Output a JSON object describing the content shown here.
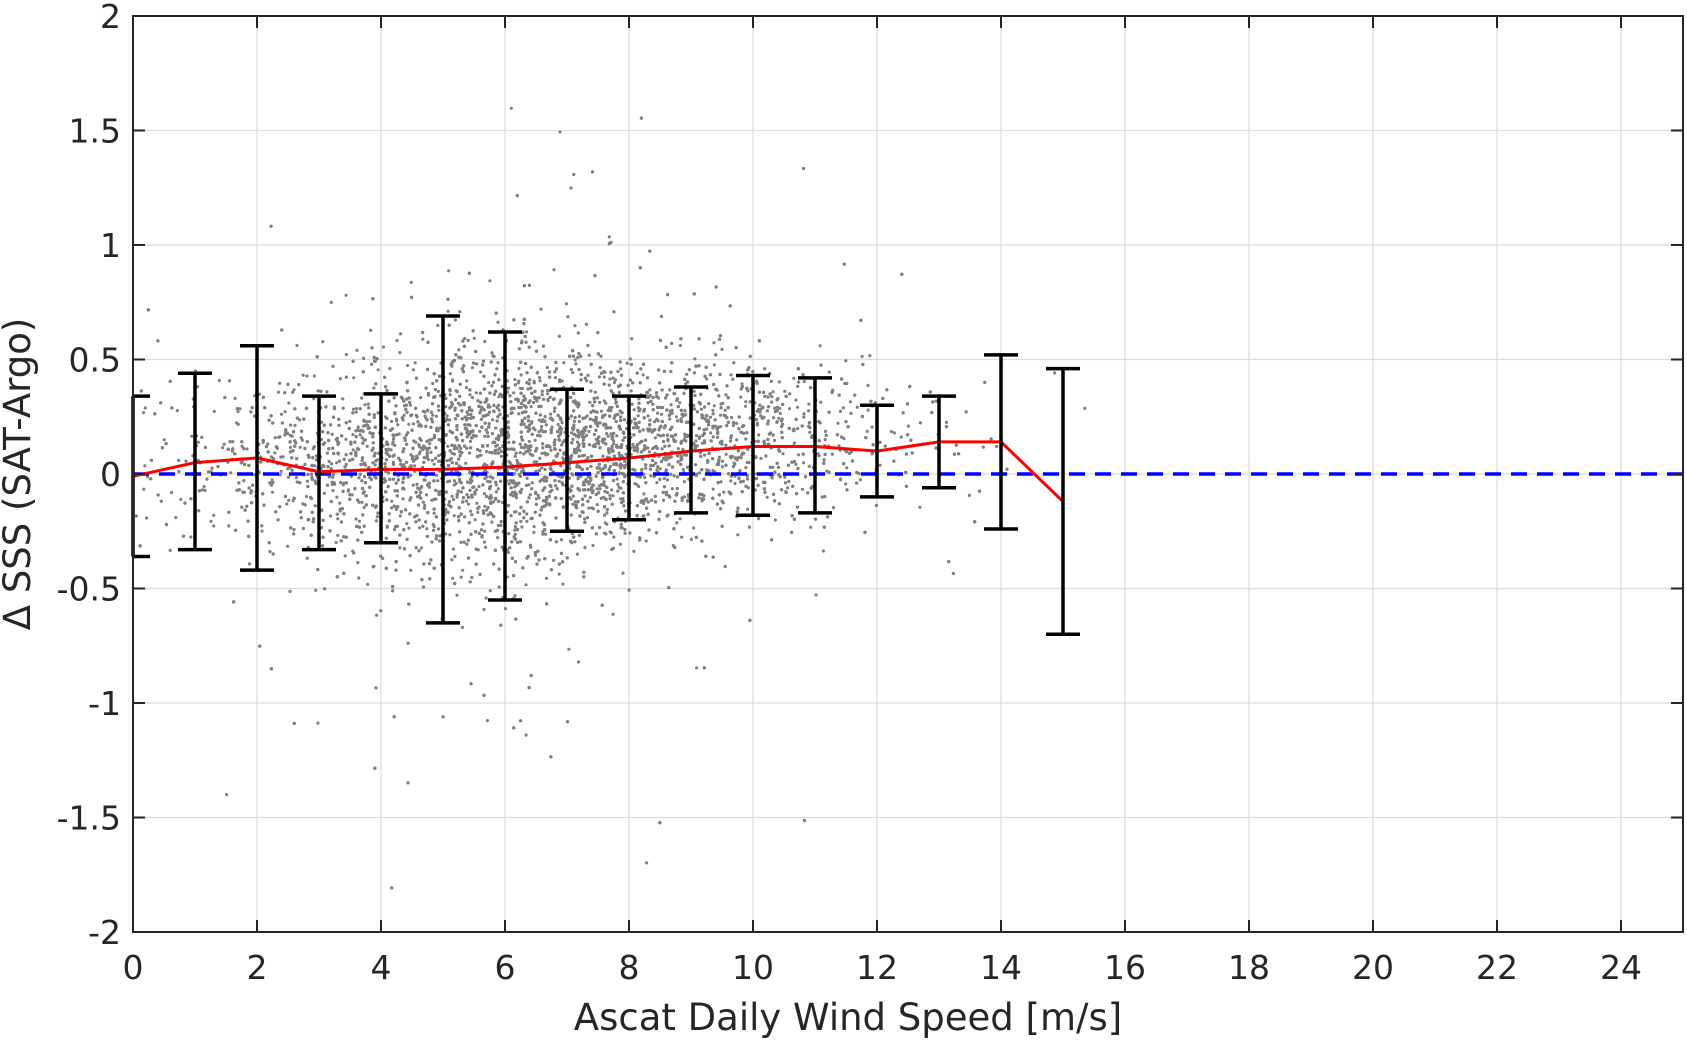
{
  "chart_data": {
    "type": "scatter",
    "xlabel": "Ascat Daily Wind Speed [m/s]",
    "ylabel": "Δ SSS (SAT-Argo)",
    "xlim": [
      0,
      25
    ],
    "ylim": [
      -2,
      2
    ],
    "grid": true,
    "x_ticks": [
      0,
      2,
      4,
      6,
      8,
      10,
      12,
      14,
      16,
      18,
      20,
      22,
      24
    ],
    "x_tick_labels": [
      "0",
      "2",
      "4",
      "6",
      "8",
      "10",
      "12",
      "14",
      "16",
      "18",
      "20",
      "22",
      "24"
    ],
    "y_ticks": [
      -2,
      -1.5,
      -1,
      -0.5,
      0,
      0.5,
      1,
      1.5,
      2
    ],
    "y_tick_labels": [
      "-2",
      "-1.5",
      "-1",
      "-0.5",
      "0",
      "0.5",
      "1",
      "1.5",
      "2"
    ],
    "colors": {
      "scatter": "#808080",
      "mean_line": "#ff0000",
      "zero_line": "#0000ff",
      "error_bars": "#000000",
      "grid": "#dcdcdc",
      "axes": "#262626"
    },
    "scatter_distribution": {
      "description_x_range": [
        0,
        15.5
      ],
      "cluster_center_x": 6.5,
      "cluster_center_y": 0.05
    },
    "mean_line": {
      "x": [
        0,
        1,
        2,
        3,
        4,
        5,
        6,
        7,
        8,
        9,
        10,
        11,
        12,
        13,
        14,
        15
      ],
      "y": [
        -0.01,
        0.05,
        0.07,
        0.01,
        0.02,
        0.02,
        0.03,
        0.05,
        0.07,
        0.1,
        0.12,
        0.12,
        0.1,
        0.14,
        0.14,
        -0.12
      ]
    },
    "error_bars": [
      {
        "x": 0,
        "upper": 0.34,
        "lower": -0.36
      },
      {
        "x": 1,
        "upper": 0.44,
        "lower": -0.33
      },
      {
        "x": 2,
        "upper": 0.56,
        "lower": -0.42
      },
      {
        "x": 3,
        "upper": 0.34,
        "lower": -0.33
      },
      {
        "x": 4,
        "upper": 0.35,
        "lower": -0.3
      },
      {
        "x": 5,
        "upper": 0.69,
        "lower": -0.65
      },
      {
        "x": 6,
        "upper": 0.62,
        "lower": -0.55
      },
      {
        "x": 7,
        "upper": 0.37,
        "lower": -0.25
      },
      {
        "x": 8,
        "upper": 0.34,
        "lower": -0.2
      },
      {
        "x": 9,
        "upper": 0.38,
        "lower": -0.17
      },
      {
        "x": 10,
        "upper": 0.43,
        "lower": -0.18
      },
      {
        "x": 11,
        "upper": 0.42,
        "lower": -0.17
      },
      {
        "x": 12,
        "upper": 0.3,
        "lower": -0.1
      },
      {
        "x": 13,
        "upper": 0.34,
        "lower": -0.06
      },
      {
        "x": 14,
        "upper": 0.52,
        "lower": -0.24
      },
      {
        "x": 15,
        "upper": 0.46,
        "lower": -0.7
      }
    ],
    "reference_line": {
      "y": 0,
      "style": "dashed"
    }
  }
}
